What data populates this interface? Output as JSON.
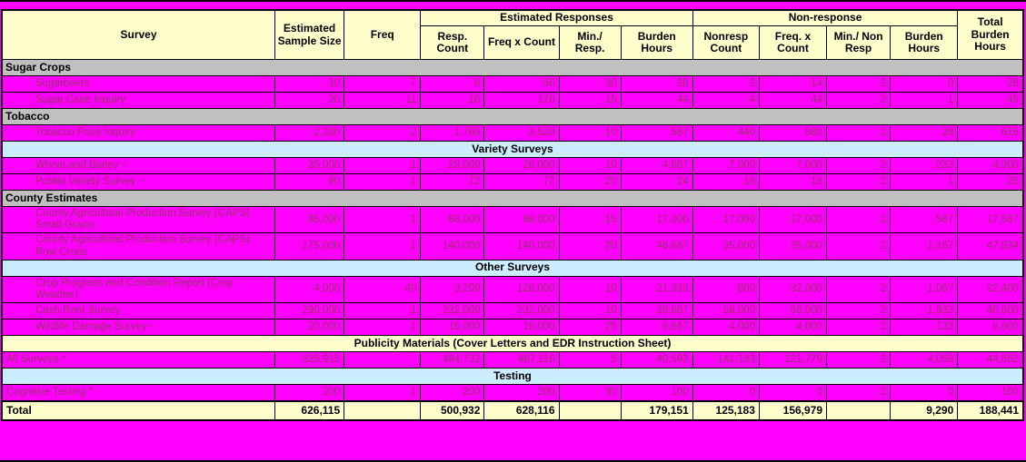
{
  "colors": {
    "background": "#FF00FF",
    "header_fill": "#FFFFCC",
    "section_gray": "#C0C0C0",
    "section_blue": "#CCECFF",
    "data_fill": "#FF00FF",
    "data_text": "#993366"
  },
  "header": {
    "survey": "Survey",
    "sample_size": "Estimated Sample Size",
    "freq": "Freq",
    "est_responses": "Estimated Responses",
    "non_response": "Non-response",
    "resp_count": "Resp. Count",
    "freq_x_count": "Freq x Count",
    "min_resp": "Min./ Resp.",
    "burden_hours": "Burden Hours",
    "nonresp_count": "Nonresp Count",
    "nr_freq_x_count": "Freq. x Count",
    "min_non_resp": "Min./ Non Resp",
    "nr_burden_hours": "Burden Hours",
    "total_burden_hours": "Total Burden Hours"
  },
  "rows": [
    {
      "type": "section-gray",
      "label": "Sugar Crops"
    },
    {
      "type": "data",
      "indent": true,
      "label": "Sugarbeets",
      "cells": [
        "10",
        "7",
        "8",
        "56",
        "30",
        "28",
        "2",
        "14",
        "2",
        "0",
        "28"
      ]
    },
    {
      "type": "data",
      "indent": true,
      "label": "Sugar Cane Inquiry",
      "cells": [
        "20",
        "11",
        "16",
        "176",
        "15",
        "44",
        "4",
        "44",
        "2",
        "1",
        "45"
      ]
    },
    {
      "type": "section-gray",
      "label": "Tobacco"
    },
    {
      "type": "data",
      "indent": true,
      "label": "Tobacco Price Inquiry",
      "cells": [
        "2,200",
        "2",
        "1,760",
        "3,520",
        "10",
        "587",
        "440",
        "880",
        "2",
        "29",
        "616"
      ]
    },
    {
      "type": "section-blue",
      "label": "Variety Surveys"
    },
    {
      "type": "data",
      "indent": true,
      "label": "Wheat and Barley ~",
      "cells": [
        "35,000",
        "1",
        "28,000",
        "28,000",
        "10",
        "4,667",
        "7,000",
        "7,000",
        "2",
        "233",
        "4,900"
      ]
    },
    {
      "type": "data",
      "indent": true,
      "label": "Potato Variety Survey ~",
      "cells": [
        "90",
        "1",
        "72",
        "72",
        "20",
        "24",
        "18",
        "18",
        "2",
        "1",
        "25"
      ]
    },
    {
      "type": "section-gray",
      "label": "County Estimates"
    },
    {
      "type": "data",
      "indent": true,
      "label": "County Agricultural Production Survey (CAPS) Small Grains",
      "cells": [
        "85,000",
        "1",
        "68,000",
        "68,000",
        "15",
        "17,000",
        "17,000",
        "17,000",
        "2",
        "567",
        "17,567"
      ]
    },
    {
      "type": "data",
      "indent": true,
      "label": "County Agricultural Production Survey (CAPS) Row Crops",
      "cells": [
        "175,000",
        "1",
        "140,000",
        "140,000",
        "20",
        "46,667",
        "35,000",
        "35,000",
        "2",
        "1,167",
        "47,834"
      ]
    },
    {
      "type": "section-blue",
      "label": "Other Surveys"
    },
    {
      "type": "data",
      "indent": true,
      "label": "Crop Progress and Condition Report (Crop Weather)",
      "cells": [
        "4,000",
        "40",
        "3,200",
        "128,000",
        "10",
        "21,333",
        "800",
        "32,000",
        "2",
        "1,067",
        "22,400"
      ]
    },
    {
      "type": "data",
      "indent": true,
      "label": "Cash Rent Survey",
      "cells": [
        "290,000",
        "1",
        "232,000",
        "232,000",
        "10",
        "38,667",
        "58,000",
        "58,000",
        "2",
        "1,933",
        "40,600"
      ]
    },
    {
      "type": "data",
      "indent": true,
      "label": "Wildlife Damage Survey~",
      "cells": [
        "20,000",
        "1",
        "16,000",
        "16,000",
        "25",
        "6,667",
        "4,000",
        "4,000",
        "2",
        "133",
        "6,800"
      ]
    },
    {
      "type": "section-cream",
      "label": "Publicity Materials (Cover Letters and EDR Instruction Sheet)"
    },
    {
      "type": "data",
      "indent": false,
      "label": "All Surveys *",
      "cells": [
        "625,915",
        "",
        "484,732",
        "487,116",
        "5",
        "40,593",
        "141,183",
        "121,779",
        "2",
        "4,059",
        "44,652"
      ]
    },
    {
      "type": "section-blue",
      "label": "Testing"
    },
    {
      "type": "data",
      "indent": false,
      "label": "Cognitive Testing *",
      "cells": [
        "200",
        "1",
        "200",
        "200",
        "30",
        "100",
        "0",
        "0",
        "2",
        "0",
        "100"
      ]
    },
    {
      "type": "total",
      "label": "Total",
      "cells": [
        "626,115",
        "",
        "500,932",
        "628,116",
        "",
        "179,151",
        "125,183",
        "156,979",
        "",
        "9,290",
        "188,441"
      ]
    }
  ]
}
